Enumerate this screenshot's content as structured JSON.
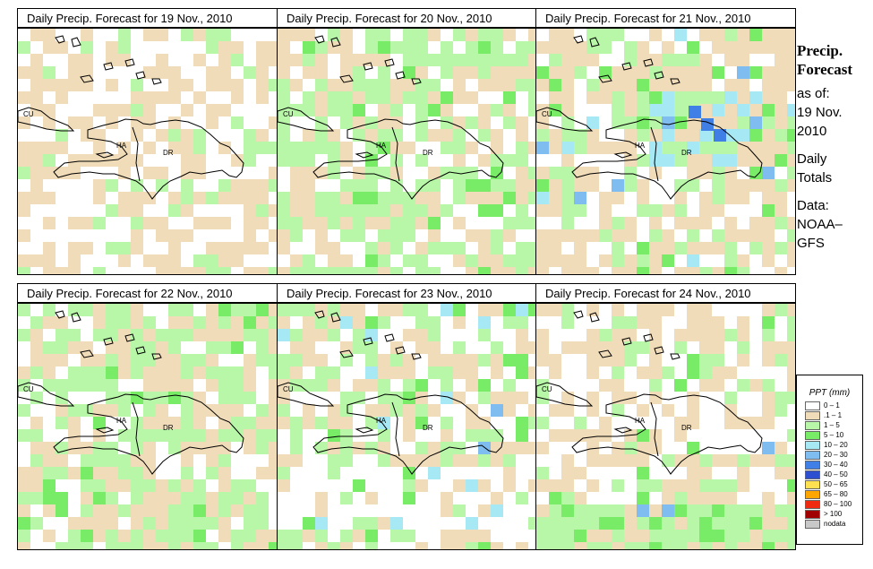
{
  "panels": [
    {
      "title": "Daily Precip. Forecast for  19 Nov., 2010"
    },
    {
      "title": "Daily Precip. Forecast for  20 Nov., 2010"
    },
    {
      "title": "Daily Precip. Forecast for  21 Nov., 2010"
    },
    {
      "title": "Daily Precip. Forecast for  22 Nov., 2010"
    },
    {
      "title": "Daily Precip. Forecast for  23 Nov., 2010"
    },
    {
      "title": "Daily Precip. Forecast for  24 Nov., 2010"
    }
  ],
  "map_labels": {
    "cu": "CU",
    "ha": "HA",
    "dr": "DR"
  },
  "side": {
    "head1": "Precip.",
    "head2": "Forecast",
    "asof": "as of:",
    "date1": "19 Nov.",
    "date2": "2010",
    "daily": "Daily",
    "totals": "Totals",
    "data": "Data:",
    "src1": "NOAA–",
    "src2": "GFS"
  },
  "legend": {
    "title": "PPT (mm)",
    "items": [
      {
        "label": "0 – 1",
        "color": "#ffffff"
      },
      {
        "label": ".1 – 1",
        "color": "#f1dcb9"
      },
      {
        "label": "1 – 5",
        "color": "#b8f7a8"
      },
      {
        "label": "5 – 10",
        "color": "#78ec66"
      },
      {
        "label": "10 – 20",
        "color": "#a6e8f3"
      },
      {
        "label": "20 – 30",
        "color": "#7fbdf0"
      },
      {
        "label": "30 – 40",
        "color": "#3f7fe6"
      },
      {
        "label": "40 – 50",
        "color": "#2d4fd0"
      },
      {
        "label": "50 – 65",
        "color": "#ffe050"
      },
      {
        "label": "65 – 80",
        "color": "#ffa500"
      },
      {
        "label": "80 – 100",
        "color": "#ef2a10"
      },
      {
        "label": "> 100",
        "color": "#a00000"
      },
      {
        "label": "nodata",
        "color": "#c8c8c8"
      }
    ]
  }
}
